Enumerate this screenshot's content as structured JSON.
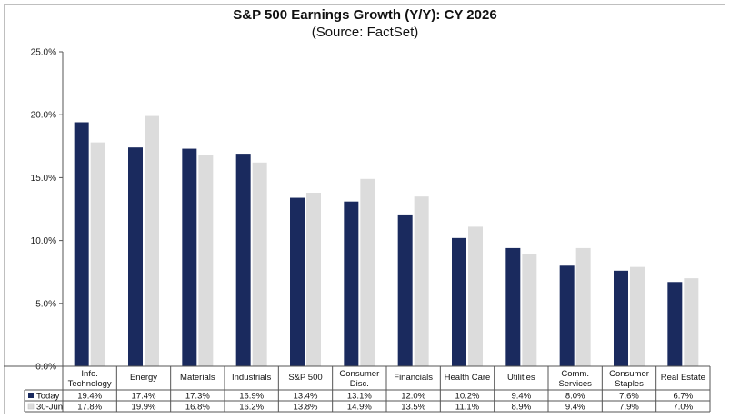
{
  "chart_data": {
    "type": "bar",
    "title": "S&P 500 Earnings Growth (Y/Y): CY 2026",
    "subtitle": "(Source: FactSet)",
    "categories": [
      [
        "Info.",
        "Technology"
      ],
      [
        "Energy"
      ],
      [
        "Materials"
      ],
      [
        "Industrials"
      ],
      [
        "S&P 500"
      ],
      [
        "Consumer",
        "Disc."
      ],
      [
        "Financials"
      ],
      [
        "Health Care"
      ],
      [
        "Utilities"
      ],
      [
        "Comm.",
        "Services"
      ],
      [
        "Consumer",
        "Staples"
      ],
      [
        "Real Estate"
      ]
    ],
    "series": [
      {
        "name": "Today",
        "color": "#1a2a5e",
        "values": [
          19.4,
          17.4,
          17.3,
          16.9,
          13.4,
          13.1,
          12.0,
          10.2,
          9.4,
          8.0,
          7.6,
          6.7
        ],
        "labels": [
          "19.4%",
          "17.4%",
          "17.3%",
          "16.9%",
          "13.4%",
          "13.1%",
          "12.0%",
          "10.2%",
          "9.4%",
          "8.0%",
          "7.6%",
          "6.7%"
        ]
      },
      {
        "name": "30-Jun",
        "color": "#dcdcdc",
        "values": [
          17.8,
          19.9,
          16.8,
          16.2,
          13.8,
          14.9,
          13.5,
          11.1,
          8.9,
          9.4,
          7.9,
          7.0
        ],
        "labels": [
          "17.8%",
          "19.9%",
          "16.8%",
          "16.2%",
          "13.8%",
          "14.9%",
          "13.5%",
          "11.1%",
          "8.9%",
          "9.4%",
          "7.9%",
          "7.0%"
        ]
      }
    ],
    "ylim": [
      0,
      25
    ],
    "yticks": [
      0,
      5,
      10,
      15,
      20,
      25
    ],
    "ytick_labels": [
      "0.0%",
      "5.0%",
      "10.0%",
      "15.0%",
      "20.0%",
      "25.0%"
    ],
    "grid": false,
    "legend": "data-table"
  }
}
